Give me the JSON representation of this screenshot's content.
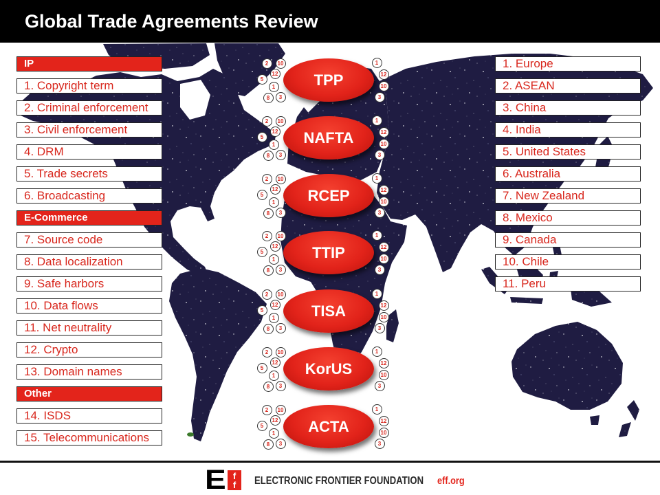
{
  "title": "Global Trade Agreements Review",
  "issue_categories": [
    {
      "name": "IP",
      "items": [
        "1. Copyright term",
        "2. Criminal enforcement",
        "3. Civil enforcement",
        "4. DRM",
        "5. Trade secrets",
        "6. Broadcasting"
      ]
    },
    {
      "name": "E-Commerce",
      "items": [
        "7. Source code",
        "8. Data localization",
        "9. Safe harbors",
        "10. Data flows",
        "11. Net neutrality",
        "12. Crypto",
        "13. Domain names"
      ]
    },
    {
      "name": "Other",
      "items": [
        "14. ISDS",
        "15. Telecommunications"
      ]
    }
  ],
  "countries": [
    "1. Europe",
    "2. ASEAN",
    "3. China",
    "4. India",
    "5. United States",
    "6. Australia",
    "7. New Zealand",
    "8. Mexico",
    "9. Canada",
    "10. Chile",
    "11. Peru"
  ],
  "agreements": [
    {
      "name": "TPP",
      "left_markers": [
        "2",
        "10",
        "12",
        "5",
        "1",
        "8",
        "3"
      ],
      "right_markers": [
        "1",
        "12",
        "10",
        "3"
      ]
    },
    {
      "name": "NAFTA",
      "left_markers": [
        "2",
        "10",
        "12",
        "5",
        "1",
        "8",
        "3"
      ],
      "right_markers": [
        "1",
        "12",
        "10",
        "3"
      ]
    },
    {
      "name": "RCEP",
      "left_markers": [
        "2",
        "10",
        "12",
        "5",
        "1",
        "8",
        "3"
      ],
      "right_markers": [
        "1",
        "12",
        "10",
        "3"
      ]
    },
    {
      "name": "TTIP",
      "left_markers": [
        "2",
        "10",
        "12",
        "5",
        "1",
        "8",
        "3"
      ],
      "right_markers": [
        "1",
        "12",
        "10",
        "3"
      ]
    },
    {
      "name": "TISA",
      "left_markers": [
        "2",
        "10",
        "12",
        "5",
        "1",
        "8",
        "3"
      ],
      "right_markers": [
        "1",
        "12",
        "10",
        "3"
      ]
    },
    {
      "name": "KorUS",
      "left_markers": [
        "2",
        "10",
        "12",
        "5",
        "1",
        "8",
        "3"
      ],
      "right_markers": [
        "1",
        "12",
        "10",
        "3"
      ]
    },
    {
      "name": "ACTA",
      "left_markers": [
        "2",
        "10",
        "12",
        "5",
        "1",
        "8",
        "3"
      ],
      "right_markers": [
        "1",
        "12",
        "10",
        "3"
      ]
    }
  ],
  "footer": {
    "logo": {
      "letter": "E",
      "box_letters": [
        "f",
        "f"
      ]
    },
    "org_name": "ELECTRONIC FRONTIER FOUNDATION",
    "url": "eff.org"
  },
  "colors": {
    "accent": "#e3241b",
    "text_accent": "#d8261c",
    "header_bg": "#000000",
    "map": "#1f1c42"
  }
}
